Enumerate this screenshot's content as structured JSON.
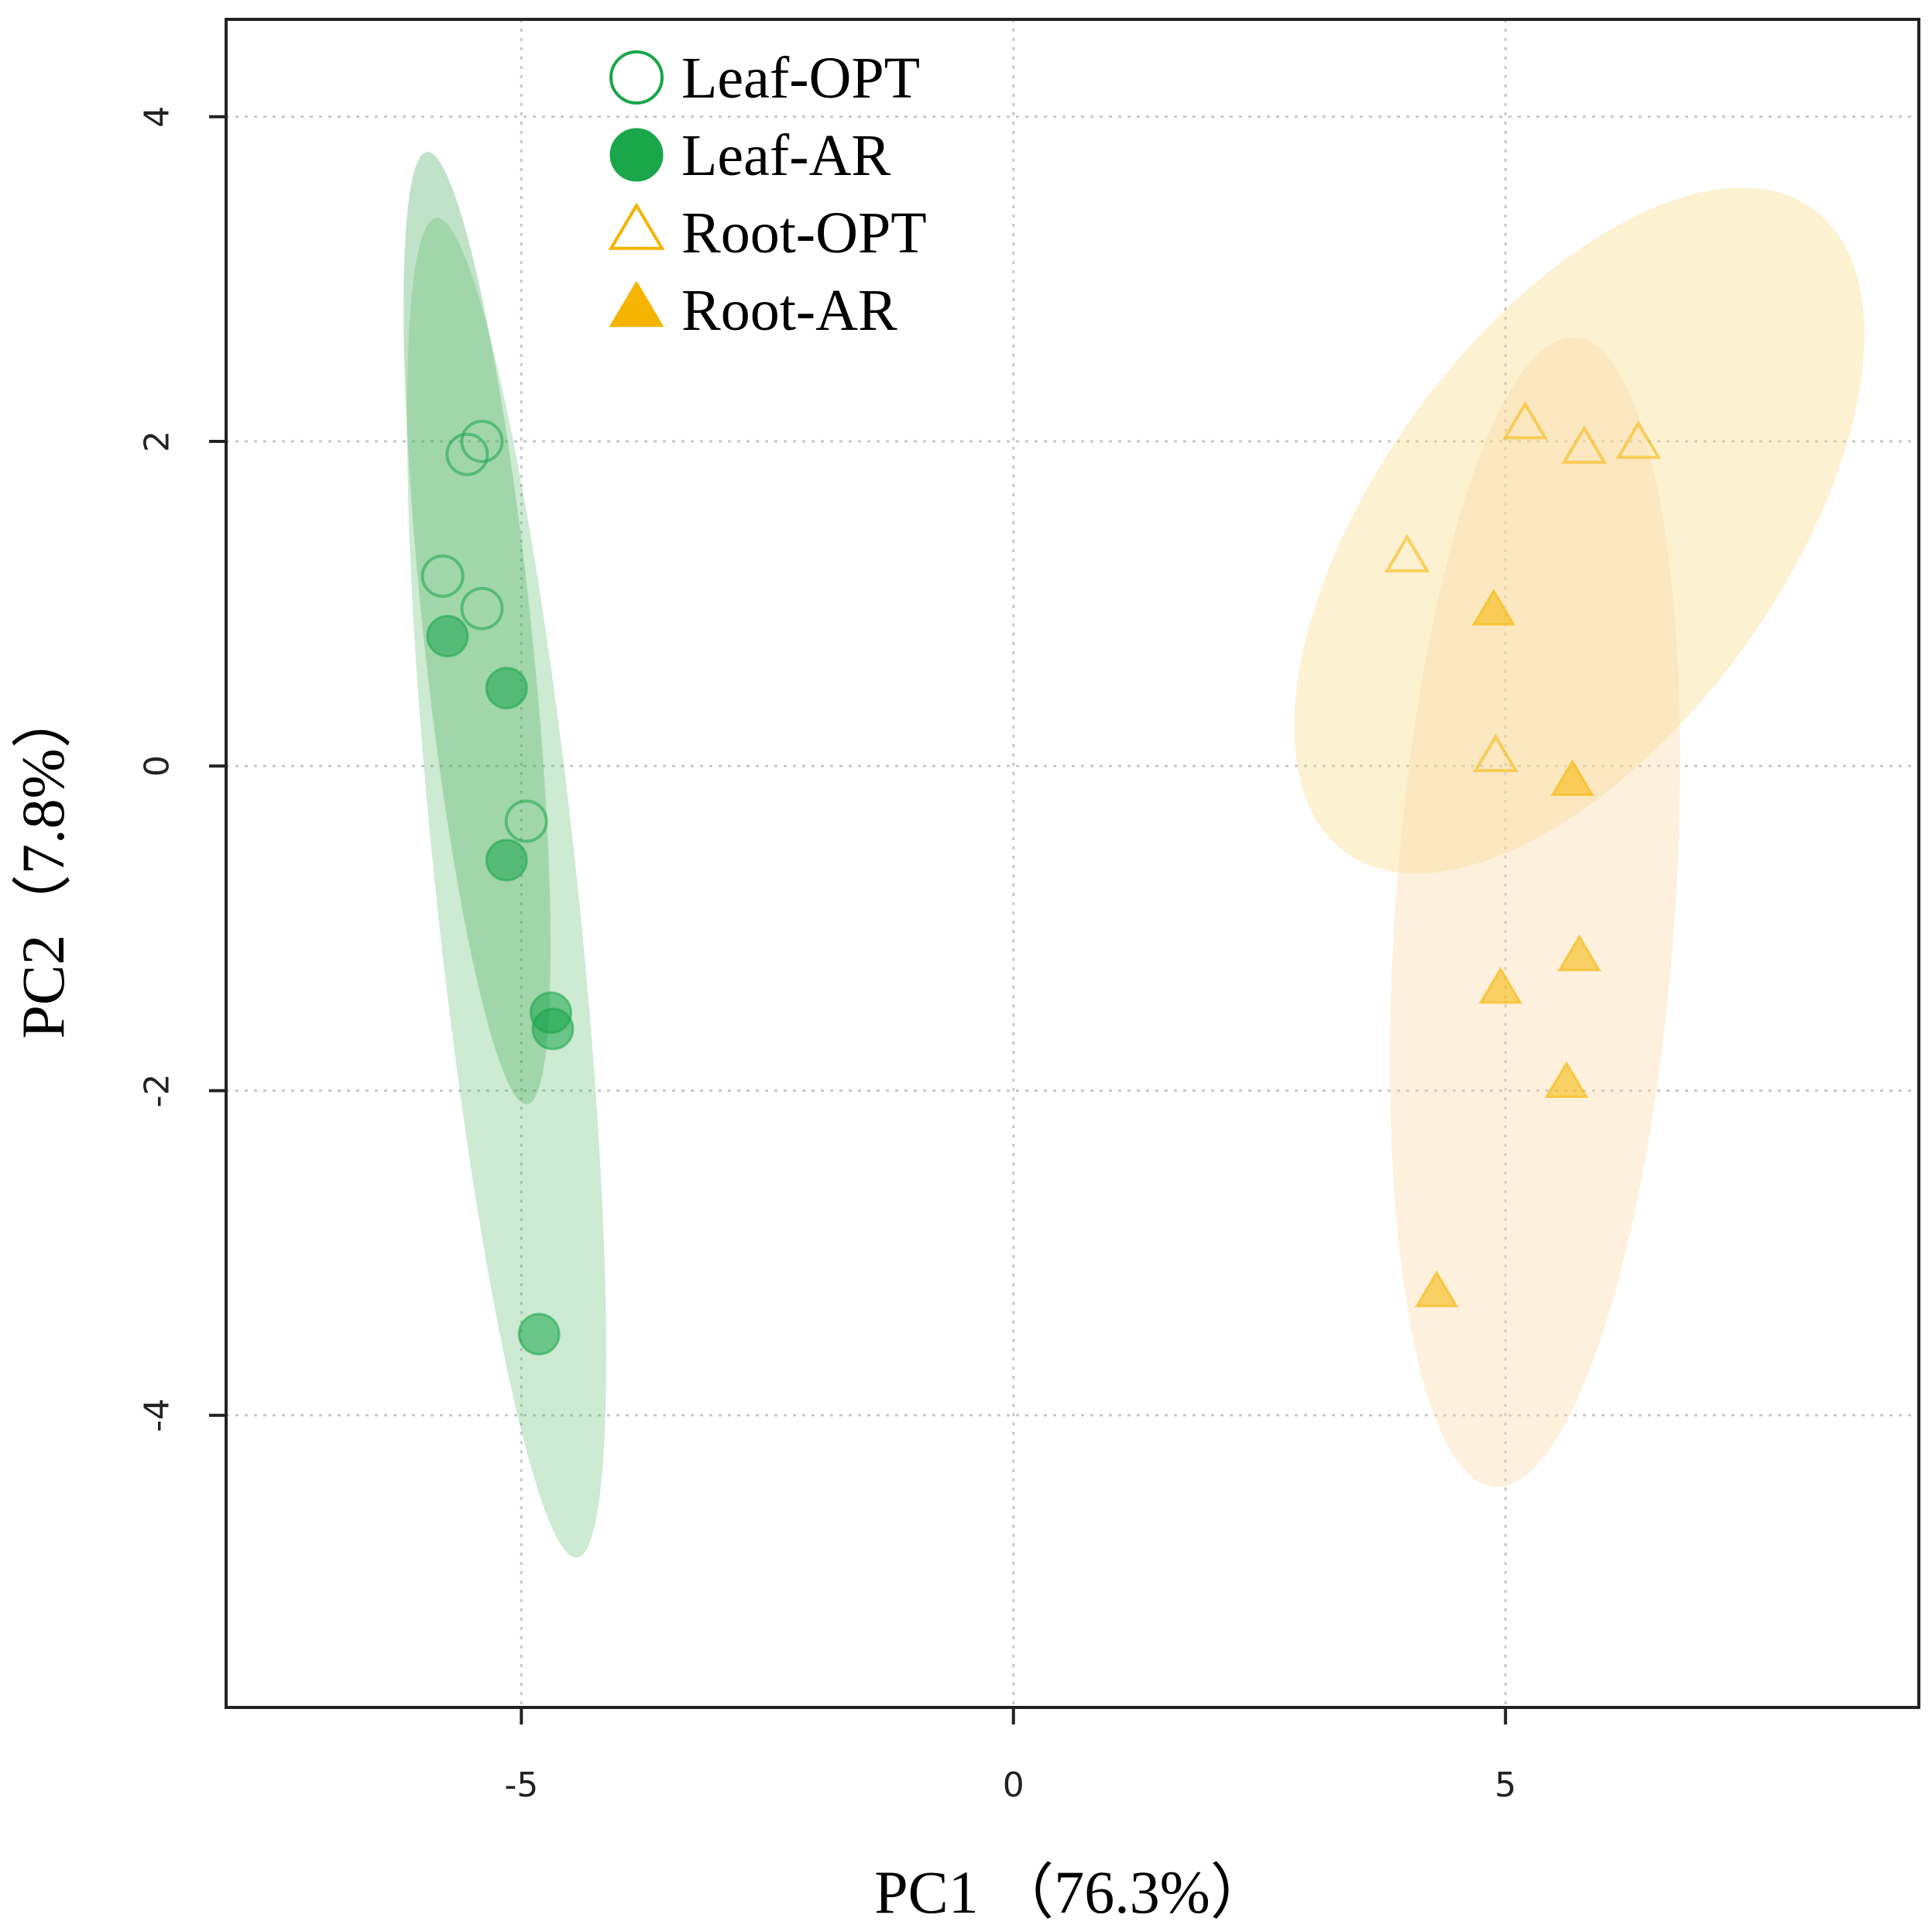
{
  "chart_data": {
    "type": "scatter",
    "title": "",
    "xlabel": "PC1 （76.3%）",
    "ylabel": "PC2（7.8%）",
    "xlim": [
      -8,
      9.2
    ],
    "ylim": [
      -5.8,
      4.6
    ],
    "xticks": [
      -5,
      0,
      5
    ],
    "xtick_labels": [
      "-5",
      "0",
      "5"
    ],
    "yticks": [
      -4,
      -2,
      0,
      2,
      4
    ],
    "ytick_labels": [
      "-4",
      "-2",
      "0",
      "2",
      "4"
    ],
    "grid": true,
    "legend_position": "top-left",
    "colors": {
      "green": "#1aa64a",
      "orange": "#f5b400"
    },
    "series": [
      {
        "name": "Leaf-OPT",
        "marker": "circle",
        "filled": false,
        "color": "#1aa64a",
        "points": [
          [
            -5.4,
            2.0
          ],
          [
            -5.55,
            1.92
          ],
          [
            -5.8,
            1.17
          ],
          [
            -5.4,
            0.97
          ],
          [
            -4.95,
            -0.34
          ]
        ],
        "ellipse": {
          "cx": -5.45,
          "cy": 0.85,
          "rx": 0.55,
          "ry": 2.95,
          "rotation_deg": -6,
          "fill": "#2e9e4a",
          "opacity": 0.3
        }
      },
      {
        "name": "Leaf-AR",
        "marker": "circle",
        "filled": true,
        "color": "#1aa64a",
        "points": [
          [
            -5.75,
            0.8
          ],
          [
            -5.15,
            0.48
          ],
          [
            -5.15,
            -0.58
          ],
          [
            -4.7,
            -1.52
          ],
          [
            -4.68,
            -1.62
          ],
          [
            -4.82,
            -3.5
          ]
        ],
        "ellipse": {
          "cx": -5.15,
          "cy": -0.75,
          "rx": 0.72,
          "ry": 4.15,
          "rotation_deg": -6,
          "fill": "#5bb86a",
          "opacity": 0.3
        }
      },
      {
        "name": "Root-OPT",
        "marker": "triangle",
        "filled": false,
        "color": "#f5b400",
        "points": [
          [
            5.2,
            2.1
          ],
          [
            5.8,
            1.95
          ],
          [
            6.35,
            1.98
          ],
          [
            4.0,
            1.28
          ],
          [
            4.9,
            0.05
          ]
        ],
        "ellipse": {
          "cx": 5.75,
          "cy": 1.45,
          "rx": 2.05,
          "ry": 2.45,
          "rotation_deg": 36,
          "fill": "#f7d67a",
          "opacity": 0.35
        }
      },
      {
        "name": "Root-AR",
        "marker": "triangle",
        "filled": true,
        "color": "#f5b400",
        "points": [
          [
            4.88,
            0.95
          ],
          [
            5.68,
            -0.1
          ],
          [
            5.75,
            -1.18
          ],
          [
            4.95,
            -1.38
          ],
          [
            5.62,
            -1.96
          ],
          [
            4.3,
            -3.25
          ]
        ],
        "ellipse": {
          "cx": 5.3,
          "cy": -0.9,
          "rx": 1.42,
          "ry": 3.55,
          "rotation_deg": 4,
          "fill": "#f9ddaa",
          "opacity": 0.4
        }
      }
    ]
  }
}
